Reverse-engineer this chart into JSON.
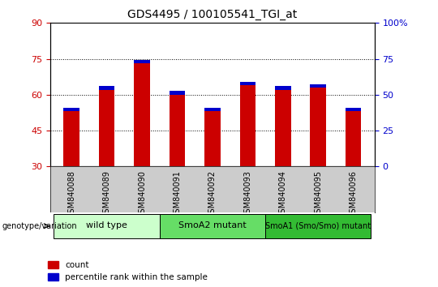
{
  "title": "GDS4495 / 100105541_TGI_at",
  "samples": [
    "GSM840088",
    "GSM840089",
    "GSM840090",
    "GSM840091",
    "GSM840092",
    "GSM840093",
    "GSM840094",
    "GSM840095",
    "GSM840096"
  ],
  "count_values": [
    53.0,
    62.0,
    73.0,
    60.0,
    53.0,
    64.0,
    62.0,
    63.0,
    53.0
  ],
  "percentile_values": [
    1.5,
    1.5,
    1.5,
    1.5,
    1.5,
    1.5,
    1.5,
    1.5,
    1.5
  ],
  "bar_bottom": 30,
  "ylim_left": [
    30,
    90
  ],
  "ylim_right": [
    0,
    100
  ],
  "yticks_left": [
    30,
    45,
    60,
    75,
    90
  ],
  "yticks_right": [
    0,
    25,
    50,
    75,
    100
  ],
  "yticklabels_right": [
    "0",
    "25",
    "50",
    "75",
    "100%"
  ],
  "color_red": "#cc0000",
  "color_blue": "#0000cc",
  "groups": [
    {
      "label": "wild type",
      "start": 0,
      "end": 3,
      "color": "#ccffcc"
    },
    {
      "label": "SmoA2 mutant",
      "start": 3,
      "end": 6,
      "color": "#66dd66"
    },
    {
      "label": "SmoA1 (Smo/Smo) mutant",
      "start": 6,
      "end": 9,
      "color": "#33bb33"
    }
  ],
  "group_label": "genotype/variation",
  "legend_count": "count",
  "legend_percentile": "percentile rank within the sample",
  "bar_width": 0.45,
  "tick_label_color_left": "#cc0000",
  "tick_label_color_right": "#0000cc",
  "gray_bg": "#cccccc"
}
